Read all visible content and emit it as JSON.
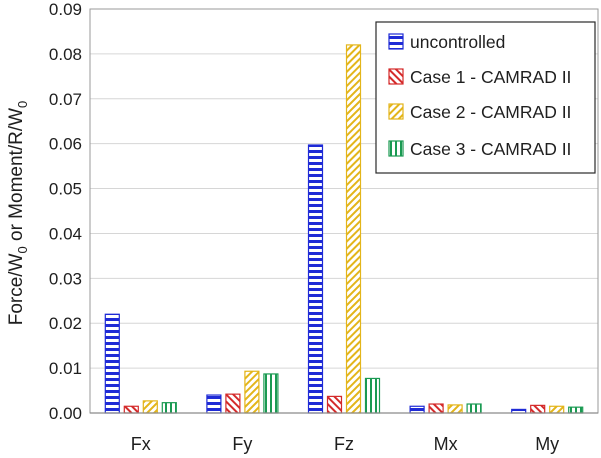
{
  "chart_data": {
    "type": "bar",
    "title": "",
    "xlabel": "",
    "ylabel": {
      "parts": [
        "Force/W",
        "0",
        " or Moment/R/W",
        "0"
      ]
    },
    "ylim": [
      0,
      0.09
    ],
    "yticks": [
      "0.00",
      "0.01",
      "0.02",
      "0.03",
      "0.04",
      "0.05",
      "0.06",
      "0.07",
      "0.08",
      "0.09"
    ],
    "grid": true,
    "legend_position": "top-right",
    "categories": [
      "Fx",
      "Fy",
      "Fz",
      "Mx",
      "My"
    ],
    "series": [
      {
        "name": "uncontrolled",
        "values": [
          0.022,
          0.004,
          0.0597,
          0.0015,
          0.0008
        ],
        "color": "#1f2bd6",
        "pattern": "horizontal-lines"
      },
      {
        "name": "Case 1 - CAMRAD II",
        "values": [
          0.0015,
          0.0042,
          0.0037,
          0.002,
          0.0017
        ],
        "color": "#d42a2a",
        "pattern": "diagonal-hatch"
      },
      {
        "name": "Case 2 - CAMRAD II",
        "values": [
          0.0027,
          0.0093,
          0.082,
          0.0018,
          0.0015
        ],
        "color": "#e3b51a",
        "pattern": "diagonal-hatch"
      },
      {
        "name": "Case 3 - CAMRAD II",
        "values": [
          0.0023,
          0.0087,
          0.0077,
          0.002,
          0.0013
        ],
        "color": "#1a9a52",
        "pattern": "vertical-lines"
      }
    ]
  }
}
